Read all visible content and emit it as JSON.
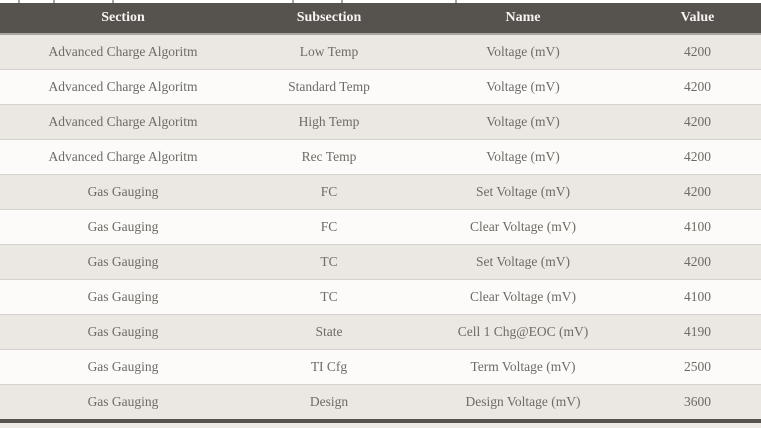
{
  "colors": {
    "header_background": "#56524e",
    "header_text": "#f6f4f1",
    "row_alt_background": "#ebe7e3",
    "row_base_background": "#fdfbf9",
    "row_text": "#6e6a65",
    "row_separator": "#d5d1cc",
    "bottom_rule": "#56524e"
  },
  "table": {
    "columns": [
      {
        "key": "section",
        "label": "Section"
      },
      {
        "key": "subsection",
        "label": "Subsection"
      },
      {
        "key": "name",
        "label": "Name"
      },
      {
        "key": "value",
        "label": "Value"
      }
    ],
    "rows": [
      {
        "section": "Advanced Charge Algoritm",
        "subsection": "Low Temp",
        "name": "Voltage (mV)",
        "value": "4200"
      },
      {
        "section": "Advanced Charge Algoritm",
        "subsection": "Standard Temp",
        "name": "Voltage (mV)",
        "value": "4200"
      },
      {
        "section": "Advanced Charge Algoritm",
        "subsection": "High Temp",
        "name": "Voltage (mV)",
        "value": "4200"
      },
      {
        "section": "Advanced Charge Algoritm",
        "subsection": "Rec Temp",
        "name": "Voltage (mV)",
        "value": "4200"
      },
      {
        "section": "Gas Gauging",
        "subsection": "FC",
        "name": "Set Voltage (mV)",
        "value": "4200"
      },
      {
        "section": "Gas Gauging",
        "subsection": "FC",
        "name": "Clear Voltage (mV)",
        "value": "4100"
      },
      {
        "section": "Gas Gauging",
        "subsection": "TC",
        "name": "Set Voltage (mV)",
        "value": "4200"
      },
      {
        "section": "Gas Gauging",
        "subsection": "TC",
        "name": "Clear Voltage (mV)",
        "value": "4100"
      },
      {
        "section": "Gas Gauging",
        "subsection": "State",
        "name": "Cell 1 Chg@EOC (mV)",
        "value": "4190"
      },
      {
        "section": "Gas Gauging",
        "subsection": "TI Cfg",
        "name": "Term Voltage (mV)",
        "value": "2500"
      },
      {
        "section": "Gas Gauging",
        "subsection": "Design",
        "name": "Design Voltage (mV)",
        "value": "3600"
      }
    ]
  }
}
